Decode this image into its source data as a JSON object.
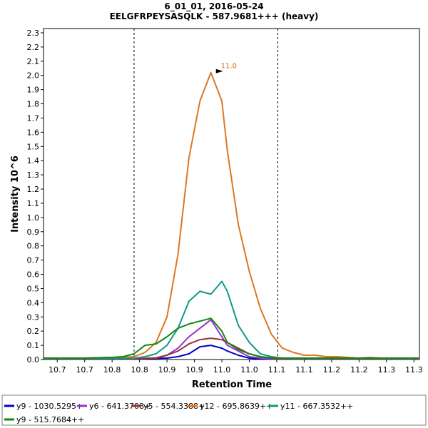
{
  "chart_data": {
    "type": "line",
    "title": "6_01_01, 2016-05-24",
    "subtitle": "EELGFRPEYSASQLK - 587.9681+++ (heavy)",
    "xlabel": "Retention Time",
    "ylabel": "Intensity 10^6",
    "xlim": [
      10.675,
      11.36
    ],
    "ylim": [
      0,
      2.33
    ],
    "x_tick_values": [
      10.7,
      10.75,
      10.8,
      10.85,
      10.9,
      10.95,
      11.0,
      11.05,
      11.1,
      11.15,
      11.2,
      11.25,
      11.3,
      11.35
    ],
    "x_tick_labels": [
      "10.7",
      "10.7",
      "10.8",
      "10.8",
      "10.9",
      "10.9",
      "11.0",
      "11.0",
      "11.1",
      "11.1",
      "11.2",
      "11.2",
      "11.3",
      "11.3"
    ],
    "y_ticks": [
      0.0,
      0.1,
      0.2,
      0.3,
      0.4,
      0.5,
      0.6,
      0.7,
      0.8,
      0.9,
      1.0,
      1.1,
      1.2,
      1.3,
      1.4,
      1.5,
      1.6,
      1.7,
      1.8,
      1.9,
      2.0,
      2.1,
      2.2,
      2.3
    ],
    "y_tick_labels": [
      "0.0",
      "0.1",
      "0.2",
      "0.3",
      "0.4",
      "0.5",
      "0.6",
      "0.7",
      "0.8",
      "0.9",
      "1.0",
      "1.1",
      "1.2",
      "1.3",
      "1.4",
      "1.5",
      "1.6",
      "1.7",
      "1.8",
      "1.9",
      "2.0",
      "2.1",
      "2.2",
      "2.3"
    ],
    "integration_bounds": [
      10.84,
      11.102
    ],
    "peak_annotation": {
      "label": "11.0",
      "x": 11.01,
      "y": 2.02,
      "color": "#cc6600"
    },
    "x": [
      10.675,
      10.7,
      10.75,
      10.8,
      10.82,
      10.84,
      10.86,
      10.88,
      10.9,
      10.92,
      10.94,
      10.96,
      10.98,
      11.0,
      11.01,
      11.03,
      11.05,
      11.07,
      11.09,
      11.11,
      11.13,
      11.15,
      11.17,
      11.19,
      11.21,
      11.23,
      11.25,
      11.27,
      11.29,
      11.31,
      11.33,
      11.36
    ],
    "series": [
      {
        "name": "y9 - 1030.5295+",
        "color": "#0000cc",
        "values": [
          0.005,
          0.005,
          0.005,
          0.005,
          0.005,
          0.005,
          0.006,
          0.008,
          0.01,
          0.02,
          0.04,
          0.09,
          0.1,
          0.08,
          0.06,
          0.03,
          0.01,
          0.005,
          0.004,
          0.004,
          0.004,
          0.004,
          0.004,
          0.004,
          0.004,
          0.004,
          0.004,
          0.004,
          0.004,
          0.004,
          0.004,
          0.004
        ]
      },
      {
        "name": "y6 - 641.3708+",
        "color": "#9933cc",
        "values": [
          0.005,
          0.005,
          0.005,
          0.005,
          0.005,
          0.005,
          0.007,
          0.01,
          0.03,
          0.08,
          0.16,
          0.22,
          0.28,
          0.16,
          0.1,
          0.06,
          0.02,
          0.01,
          0.005,
          0.004,
          0.004,
          0.004,
          0.004,
          0.004,
          0.004,
          0.004,
          0.004,
          0.004,
          0.004,
          0.004,
          0.004,
          0.004
        ]
      },
      {
        "name": "y5 - 554.3388+",
        "color": "#993333",
        "values": [
          0.006,
          0.006,
          0.006,
          0.006,
          0.006,
          0.007,
          0.009,
          0.012,
          0.03,
          0.06,
          0.11,
          0.14,
          0.15,
          0.14,
          0.12,
          0.08,
          0.04,
          0.02,
          0.01,
          0.006,
          0.006,
          0.006,
          0.006,
          0.006,
          0.006,
          0.006,
          0.006,
          0.006,
          0.006,
          0.006,
          0.006,
          0.006
        ]
      },
      {
        "name": "y12 - 695.8639++",
        "color": "#dd7722",
        "values": [
          0.01,
          0.01,
          0.01,
          0.015,
          0.015,
          0.02,
          0.05,
          0.12,
          0.3,
          0.74,
          1.42,
          1.82,
          2.02,
          1.82,
          1.47,
          0.95,
          0.62,
          0.36,
          0.18,
          0.08,
          0.05,
          0.03,
          0.03,
          0.02,
          0.02,
          0.015,
          0.01,
          0.015,
          0.01,
          0.01,
          0.01,
          0.01
        ]
      },
      {
        "name": "y11 - 667.3532++",
        "color": "#119988",
        "values": [
          0.008,
          0.008,
          0.008,
          0.008,
          0.008,
          0.01,
          0.02,
          0.04,
          0.1,
          0.22,
          0.41,
          0.48,
          0.46,
          0.55,
          0.48,
          0.24,
          0.12,
          0.04,
          0.02,
          0.01,
          0.008,
          0.008,
          0.008,
          0.008,
          0.008,
          0.008,
          0.008,
          0.008,
          0.008,
          0.008,
          0.008,
          0.008
        ]
      },
      {
        "name": "y9 - 515.7684++",
        "color": "#118811",
        "values": [
          0.01,
          0.01,
          0.01,
          0.015,
          0.02,
          0.04,
          0.1,
          0.11,
          0.16,
          0.22,
          0.25,
          0.27,
          0.29,
          0.2,
          0.12,
          0.07,
          0.04,
          0.02,
          0.012,
          0.01,
          0.01,
          0.01,
          0.01,
          0.01,
          0.01,
          0.01,
          0.01,
          0.01,
          0.01,
          0.01,
          0.01,
          0.01
        ]
      }
    ]
  }
}
